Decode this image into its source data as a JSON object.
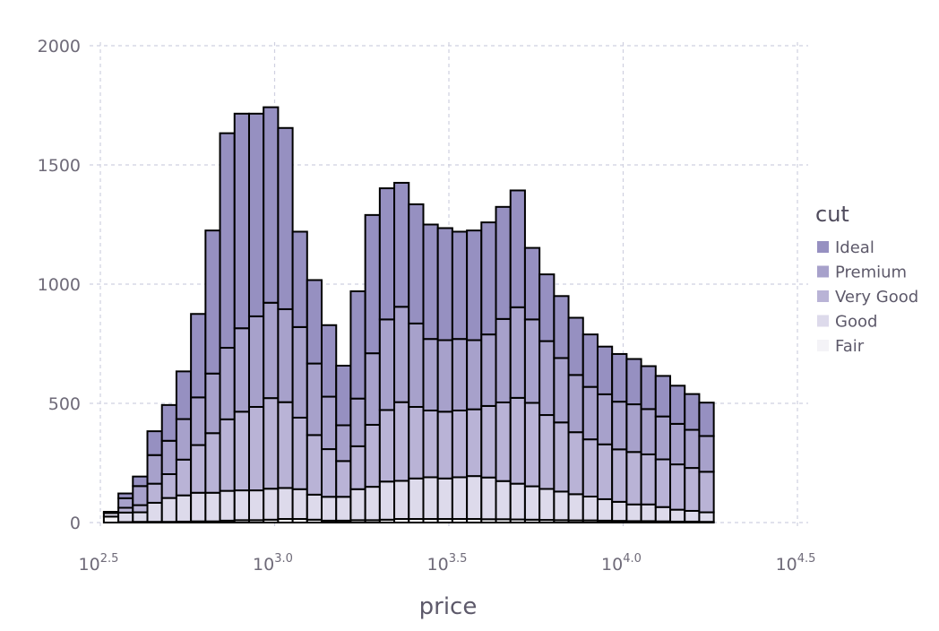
{
  "chart_data": {
    "type": "bar",
    "stacked": true,
    "x_scale": "log10",
    "xlabel": "price",
    "ylabel": "",
    "xlim": [
      316.23,
      31622.78
    ],
    "ylim": [
      0,
      2000
    ],
    "grid": true,
    "legend_position": "right",
    "legend_title": "cut",
    "y_ticks": [
      "0",
      "500",
      "1000",
      "1500",
      "2000"
    ],
    "x_ticks": [
      {
        "base": "10",
        "exp": "2.5"
      },
      {
        "base": "10",
        "exp": "3.0"
      },
      {
        "base": "10",
        "exp": "3.5"
      },
      {
        "base": "10",
        "exp": "4.0"
      },
      {
        "base": "10",
        "exp": "4.5"
      }
    ],
    "bin_edges_log10": [
      2.51,
      2.5517,
      2.5933,
      2.635,
      2.6767,
      2.7183,
      2.76,
      2.8017,
      2.8433,
      2.885,
      2.9267,
      2.9683,
      3.01,
      3.0517,
      3.0933,
      3.135,
      3.1767,
      3.2183,
      3.26,
      3.3017,
      3.3433,
      3.385,
      3.4267,
      3.4683,
      3.51,
      3.5517,
      3.5933,
      3.635,
      3.6767,
      3.7183,
      3.76,
      3.8017,
      3.8433,
      3.885,
      3.9267,
      3.9683,
      4.01,
      4.0517,
      4.0933,
      4.135,
      4.1767,
      4.2183,
      4.26
    ],
    "stack_order": [
      "Fair",
      "Good",
      "Very Good",
      "Premium",
      "Ideal"
    ],
    "series": [
      {
        "name": "Fair",
        "color": "#f4f3f7",
        "values": [
          25,
          2,
          3,
          3,
          3,
          4,
          5,
          5,
          8,
          10,
          10,
          12,
          15,
          15,
          12,
          8,
          8,
          10,
          10,
          12,
          15,
          15,
          15,
          15,
          15,
          15,
          14,
          14,
          13,
          12,
          11,
          10,
          9,
          9,
          8,
          7,
          6,
          6,
          5,
          4,
          4,
          3
        ]
      },
      {
        "name": "Good",
        "color": "#dddaeb",
        "values": [
          15,
          40,
          40,
          80,
          100,
          110,
          120,
          120,
          125,
          125,
          125,
          130,
          130,
          125,
          105,
          100,
          100,
          130,
          140,
          160,
          160,
          170,
          175,
          170,
          175,
          180,
          175,
          160,
          150,
          140,
          130,
          120,
          110,
          100,
          90,
          80,
          70,
          70,
          60,
          50,
          45,
          40
        ]
      },
      {
        "name": "Very Good",
        "color": "#b9b3d6",
        "values": [
          0,
          20,
          30,
          80,
          100,
          150,
          200,
          250,
          300,
          330,
          350,
          380,
          360,
          300,
          250,
          200,
          150,
          180,
          260,
          300,
          330,
          300,
          280,
          280,
          280,
          280,
          300,
          330,
          360,
          350,
          310,
          290,
          260,
          240,
          230,
          220,
          220,
          210,
          200,
          190,
          180,
          170
        ]
      },
      {
        "name": "Premium",
        "color": "#a7a1cb",
        "values": [
          0,
          40,
          80,
          120,
          140,
          170,
          200,
          250,
          300,
          350,
          380,
          400,
          390,
          380,
          300,
          220,
          150,
          200,
          300,
          380,
          400,
          350,
          300,
          300,
          300,
          290,
          300,
          350,
          380,
          350,
          310,
          270,
          240,
          220,
          210,
          200,
          200,
          190,
          180,
          170,
          160,
          150
        ]
      },
      {
        "name": "Ideal",
        "color": "#9690c1",
        "values": [
          5,
          20,
          40,
          100,
          150,
          200,
          350,
          600,
          900,
          900,
          850,
          820,
          760,
          400,
          350,
          300,
          250,
          450,
          580,
          550,
          520,
          500,
          480,
          470,
          450,
          460,
          470,
          470,
          490,
          300,
          280,
          260,
          240,
          220,
          200,
          200,
          190,
          180,
          170,
          160,
          150,
          140
        ]
      }
    ]
  }
}
